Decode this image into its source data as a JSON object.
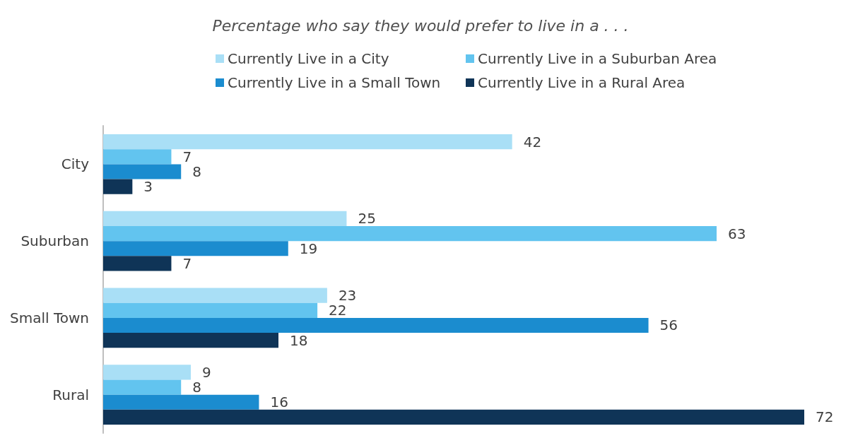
{
  "chart_data": {
    "type": "bar",
    "orientation": "horizontal",
    "title": "Percentage who say they would prefer to live in a . . .",
    "categories": [
      "City",
      "Suburban",
      "Small Town",
      "Rural"
    ],
    "series": [
      {
        "name": "Currently Live in a City",
        "color": "#a9dff6",
        "values": [
          42,
          25,
          23,
          9
        ]
      },
      {
        "name": "Currently Live in a Suburban Area",
        "color": "#62c4ef",
        "values": [
          7,
          63,
          22,
          8
        ]
      },
      {
        "name": "Currently Live in a Small Town",
        "color": "#1b8ccf",
        "values": [
          8,
          19,
          56,
          16
        ]
      },
      {
        "name": "Currently Live in a Rural Area",
        "color": "#0f3457",
        "values": [
          3,
          7,
          18,
          72
        ]
      }
    ],
    "data_labels": true,
    "legend": "top",
    "tick_labels": "y"
  }
}
